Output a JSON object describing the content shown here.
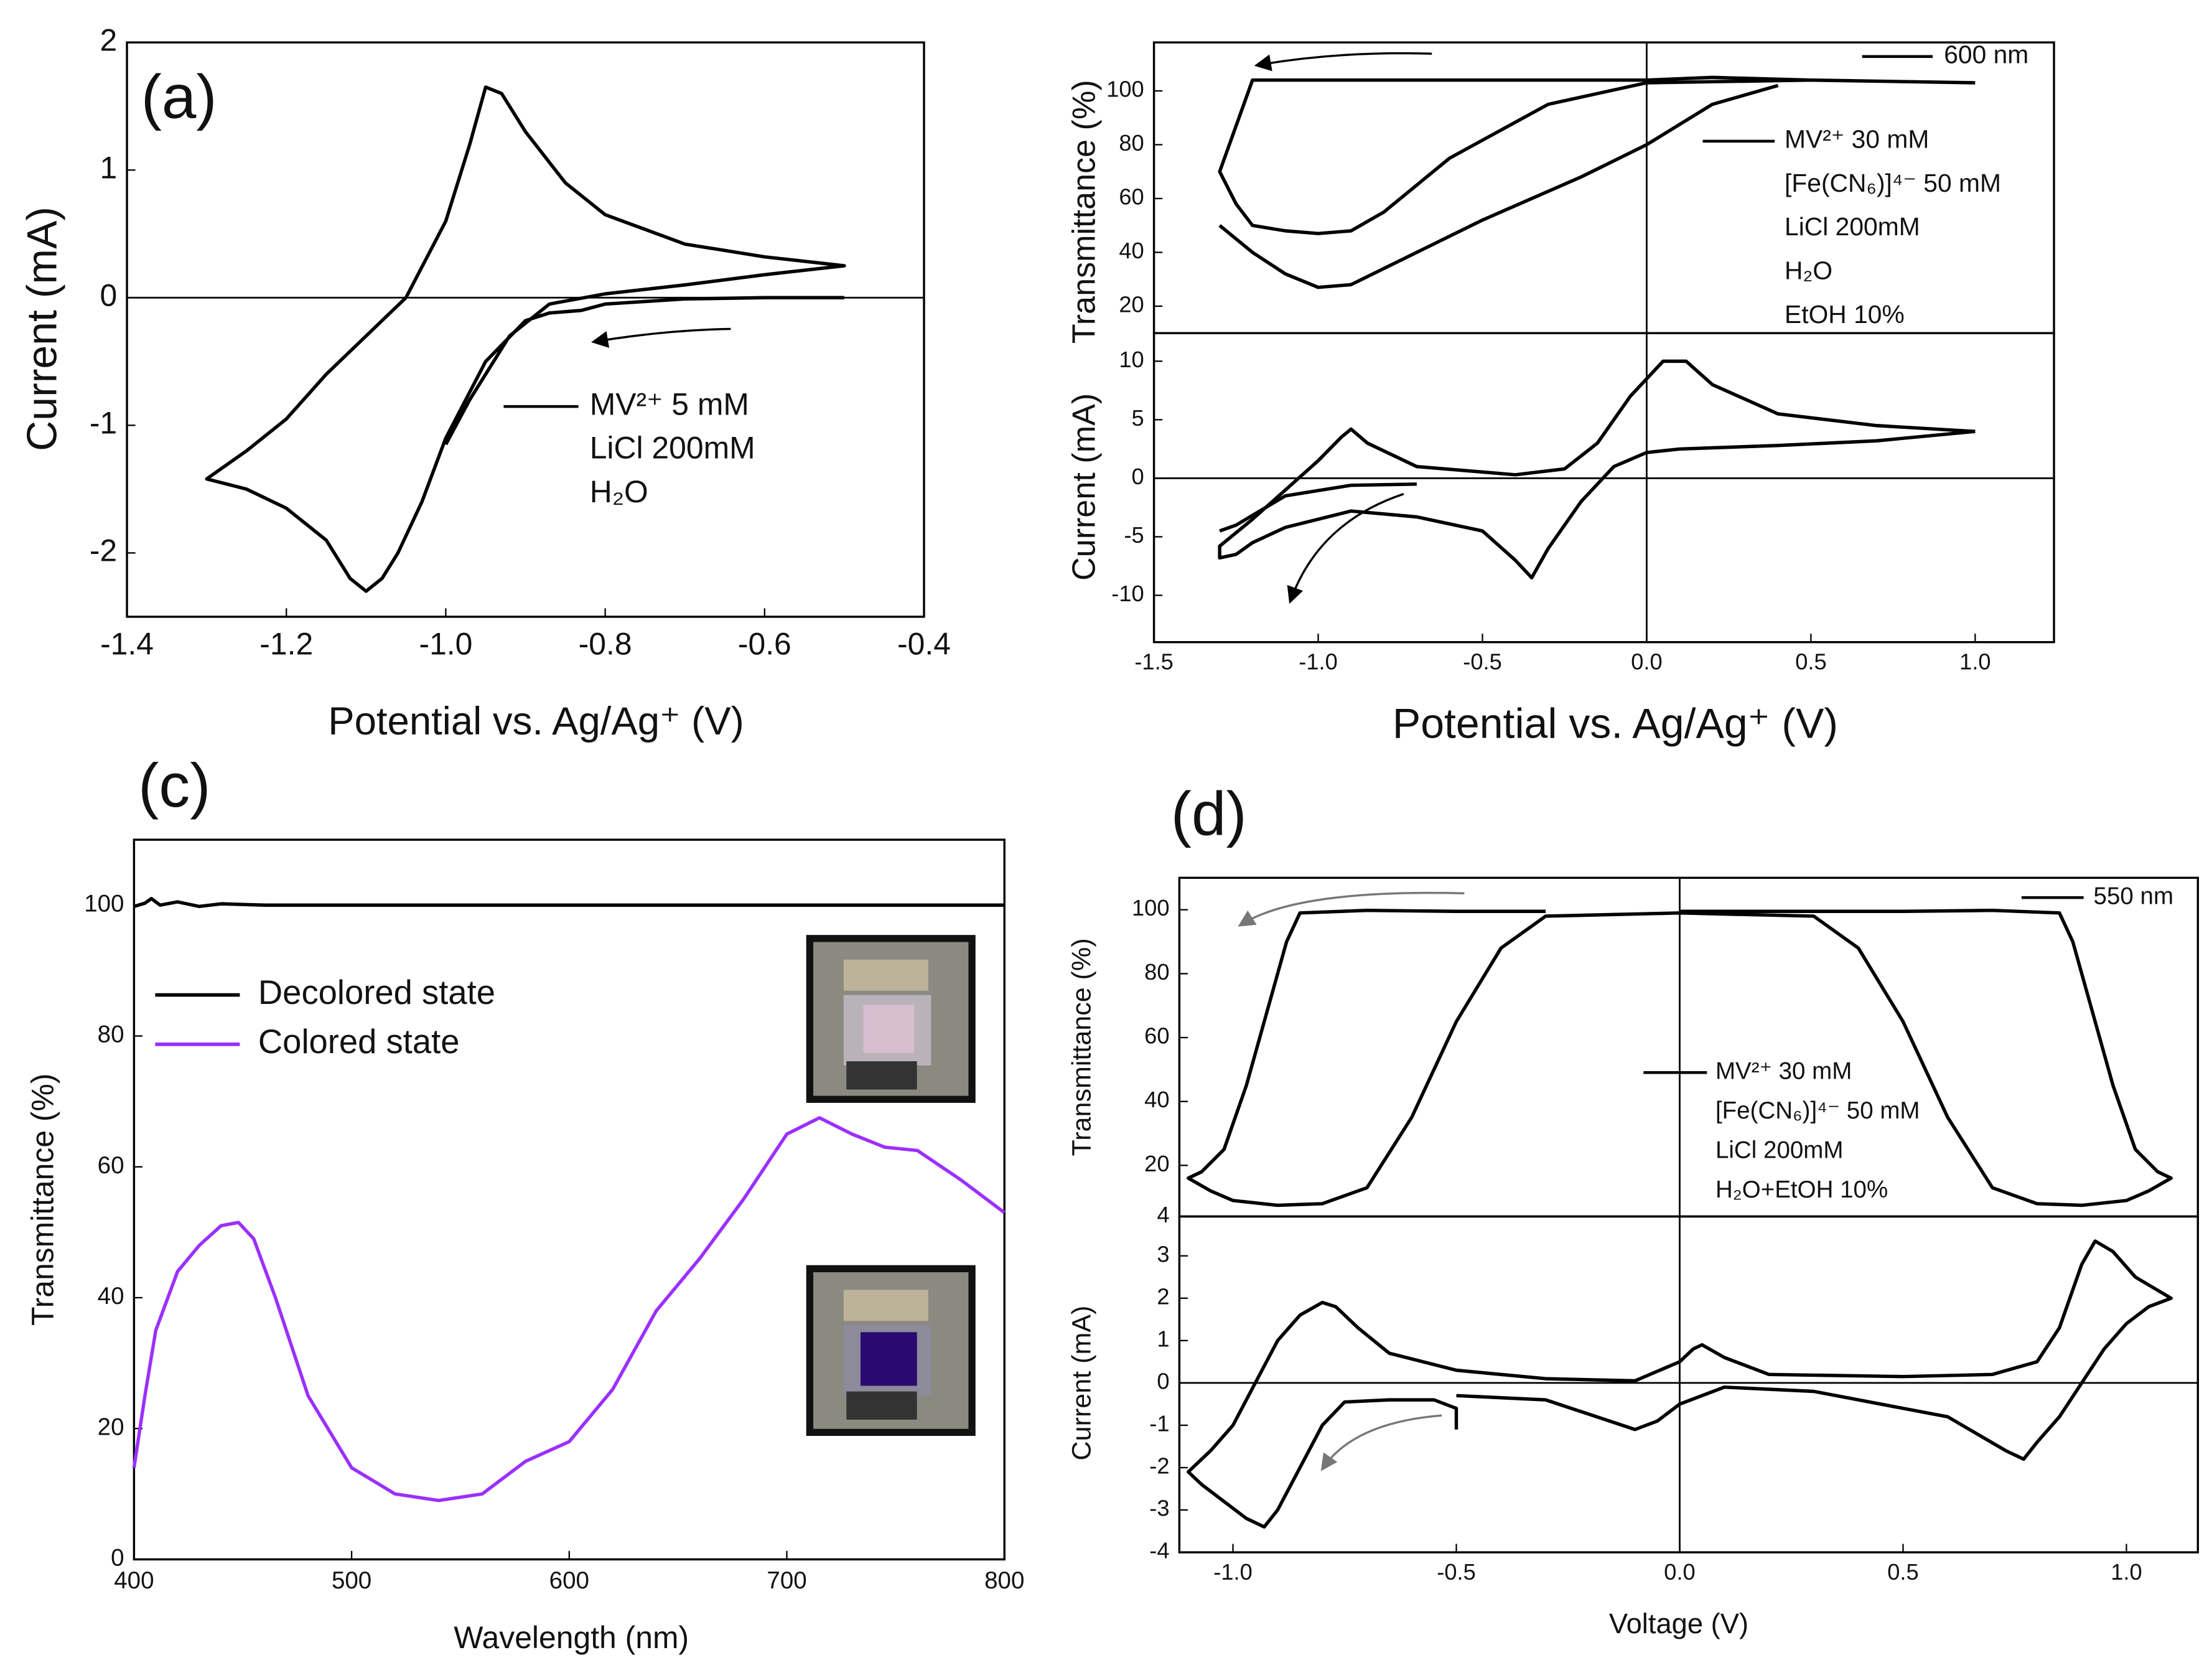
{
  "chart_data": [
    {
      "type": "line",
      "panel_label": "(a)",
      "xlabel": "Potential vs. Ag/Ag⁺ (V)",
      "ylabel": "Current (mA)",
      "xlim": [
        -1.4,
        -0.4
      ],
      "ylim": [
        -2.5,
        2
      ],
      "xticks": [
        -1.4,
        -1.2,
        {
          "value": -1,
          "label": "-1.0"
        },
        -0.8,
        -0.6,
        -0.4
      ],
      "yticks": [
        -2,
        -1,
        0,
        1,
        2
      ],
      "zero_lines": [
        "y"
      ],
      "annotations": [
        [
          "MV²⁺ 5 mM",
          "LiCl 200mM",
          "H₂O"
        ]
      ],
      "series": [
        {
          "color": "#000000",
          "x": [
            -0.5,
            -0.6,
            -0.7,
            -0.8,
            -0.83,
            -0.87,
            -0.9,
            -0.95,
            -1.0,
            -1.03,
            -1.06,
            -1.08,
            -1.1,
            -1.12,
            -1.15,
            -1.2,
            -1.25,
            -1.3,
            -1.25,
            -1.2,
            -1.15,
            -1.1,
            -1.05,
            -1.0,
            -0.97,
            -0.95,
            -0.93,
            -0.9,
            -0.85,
            -0.8,
            -0.7,
            -0.6,
            -0.5,
            -0.6,
            -0.7,
            -0.8,
            -0.87,
            -0.92,
            -0.97,
            -1.0
          ],
          "values": [
            0,
            0,
            -0.01,
            -0.05,
            -0.1,
            -0.12,
            -0.18,
            -0.5,
            -1.1,
            -1.6,
            -2.0,
            -2.2,
            -2.3,
            -2.2,
            -1.9,
            -1.65,
            -1.5,
            -1.42,
            -1.2,
            -0.95,
            -0.6,
            -0.3,
            0,
            0.6,
            1.2,
            1.65,
            1.6,
            1.3,
            0.9,
            0.65,
            0.42,
            0.32,
            0.25,
            0.18,
            0.1,
            0.03,
            -0.05,
            -0.3,
            -0.8,
            -1.15
          ]
        }
      ]
    },
    {
      "type": "line",
      "ylabel": "Transmittance (%)",
      "xlim": [
        -1.5,
        1.24
      ],
      "ylim": [
        10,
        118
      ],
      "yticks": [
        20,
        40,
        60,
        80,
        100
      ],
      "zero_lines": [
        "x"
      ],
      "annotations": [
        [
          "600 nm"
        ],
        [
          "MV²⁺ 30 mM",
          "[Fe(CN₆)]⁴⁻ 50 mM",
          "LiCl 200mM",
          "H₂O",
          "EtOH 10%"
        ]
      ],
      "series": [
        {
          "color": "#000000",
          "x": [
            1.0,
            0.5,
            0.2,
            0,
            -0.2,
            -0.5,
            -0.8,
            -0.95,
            -1.1,
            -1.2,
            -1.3,
            -1.25,
            -1.2,
            -1.1,
            -1.0,
            -0.9,
            -0.8,
            -0.6,
            -0.3,
            0,
            0.5,
            1.0
          ],
          "values": [
            103,
            104,
            105,
            104,
            104,
            104,
            104,
            104,
            104,
            104,
            70,
            58,
            50,
            48,
            47,
            48,
            55,
            75,
            95,
            103,
            104,
            103
          ]
        },
        {
          "color": "#000000",
          "x": [
            -1.3,
            -1.2,
            -1.1,
            -1.0,
            -0.9,
            -0.7,
            -0.5,
            -0.2,
            0,
            0.2,
            0.4
          ],
          "values": [
            50,
            40,
            32,
            27,
            28,
            40,
            52,
            68,
            80,
            95,
            102
          ]
        }
      ]
    },
    {
      "type": "line",
      "xlabel": "Potential vs. Ag/Ag⁺ (V)",
      "ylabel": "Current (mA)",
      "xlim": [
        -1.5,
        1.24
      ],
      "ylim": [
        -14,
        12.4
      ],
      "xticks": [
        -1.5,
        {
          "value": -1,
          "label": "-1.0"
        },
        -0.5,
        {
          "value": 0,
          "label": "0.0"
        },
        0.5,
        {
          "value": 1,
          "label": "1.0"
        }
      ],
      "yticks": [
        -10,
        -5,
        0,
        5,
        10
      ],
      "zero_lines": [
        "x",
        "y"
      ],
      "series": [
        {
          "color": "#000000",
          "x": [
            1.0,
            0.7,
            0.4,
            0.2,
            0.1,
            0,
            -0.1,
            -0.2,
            -0.3,
            -0.35,
            -0.4,
            -0.5,
            -0.7,
            -0.9,
            -1.1,
            -1.2,
            -1.25,
            -1.3,
            -1.3,
            -1.2,
            -1.1,
            -1.0,
            -0.93,
            -0.9,
            -0.85,
            -0.7,
            -0.4,
            -0.25,
            -0.15,
            -0.05,
            0.05,
            0.12,
            0.2,
            0.4,
            0.7,
            1.0
          ],
          "values": [
            4,
            3.2,
            2.8,
            2.6,
            2.5,
            2.2,
            1.0,
            -2,
            -6,
            -8.5,
            -7,
            -4.5,
            -3.3,
            -2.8,
            -4.2,
            -5.5,
            -6.5,
            -6.8,
            -5.8,
            -3.5,
            -1,
            1.5,
            3.5,
            4.2,
            3,
            1,
            0.3,
            0.8,
            3,
            7,
            10,
            10,
            8,
            5.5,
            4.5,
            4
          ]
        },
        {
          "color": "#000000",
          "x": [
            -0.7,
            -0.9,
            -1.1,
            -1.25,
            -1.3
          ],
          "values": [
            -0.5,
            -0.6,
            -1.5,
            -4,
            -4.5
          ]
        }
      ]
    },
    {
      "type": "line",
      "panel_label": "(c)",
      "xlabel": "Wavelength (nm)",
      "ylabel": "Transmittance (%)",
      "xlim": [
        400,
        800
      ],
      "ylim": [
        0,
        110
      ],
      "xticks": [
        400,
        500,
        600,
        700,
        800
      ],
      "yticks": [
        0,
        20,
        40,
        60,
        80,
        100
      ],
      "legend": "upper left",
      "series": [
        {
          "name": "Decolored state",
          "color": "#000000",
          "x": [
            400,
            405,
            408,
            412,
            420,
            430,
            440,
            460,
            500,
            600,
            700,
            800
          ],
          "values": [
            99.8,
            100.3,
            101,
            100,
            100.5,
            99.8,
            100.2,
            100,
            100,
            100,
            100,
            100
          ]
        },
        {
          "name": "Colored state",
          "color": "#9b30ff",
          "x": [
            400,
            405,
            410,
            420,
            430,
            440,
            448,
            455,
            465,
            480,
            500,
            520,
            540,
            560,
            580,
            600,
            620,
            640,
            660,
            680,
            700,
            715,
            730,
            745,
            760,
            780,
            800
          ],
          "values": [
            14,
            25,
            35,
            44,
            48,
            51,
            51.5,
            49,
            40,
            25,
            14,
            10,
            9,
            10,
            15,
            18,
            26,
            38,
            46,
            55,
            65,
            67.5,
            65,
            63,
            62.5,
            58,
            53
          ]
        }
      ]
    },
    {
      "type": "line",
      "panel_label": "(d)",
      "ylabel": "Transmittance (%)",
      "xlim": [
        -1.12,
        1.16
      ],
      "ylim": [
        4,
        110
      ],
      "yticks": [
        4,
        20,
        40,
        60,
        80,
        100
      ],
      "zero_lines": [
        "x"
      ],
      "annotations": [
        [
          "550 nm"
        ],
        [
          "MV²⁺ 30 mM",
          "[Fe(CN₆)]⁴⁻ 50 mM",
          "LiCl 200mM",
          "H₂O+EtOH 10%"
        ]
      ],
      "series": [
        {
          "color": "#000000",
          "x": [
            -0.3,
            -0.5,
            -0.7,
            -0.85,
            -0.88,
            -0.92,
            -0.97,
            -1.02,
            -1.07,
            -1.1,
            -1.05,
            -1.0,
            -0.9,
            -0.8,
            -0.7,
            -0.6,
            -0.5,
            -0.4,
            -0.3,
            0,
            0.3,
            0.4,
            0.5,
            0.6,
            0.7,
            0.8,
            0.9,
            1.0,
            1.05,
            1.1,
            1.07,
            1.02,
            0.97,
            0.92,
            0.88,
            0.85,
            0.7,
            0.5,
            0.3,
            0
          ],
          "values": [
            99.5,
            99.5,
            99.8,
            99,
            90,
            70,
            45,
            25,
            18,
            16,
            12,
            9,
            7.5,
            8,
            13,
            35,
            65,
            88,
            98,
            99,
            98,
            88,
            65,
            35,
            13,
            8,
            7.5,
            9,
            12,
            16,
            18,
            25,
            45,
            70,
            90,
            99,
            99.8,
            99.5,
            99.5,
            99.5
          ]
        }
      ]
    },
    {
      "type": "line",
      "xlabel": "Voltage (V)",
      "ylabel": "Current (mA)",
      "xlim": [
        -1.12,
        1.16
      ],
      "ylim": [
        -4,
        3.93
      ],
      "xticks": [
        {
          "value": -1,
          "label": "-1.0"
        },
        -0.5,
        {
          "value": 0,
          "label": "0.0"
        },
        0.5,
        {
          "value": 1,
          "label": "1.0"
        }
      ],
      "yticks": [
        -4,
        -3,
        -2,
        -1,
        0,
        1,
        2,
        3
      ],
      "zero_lines": [
        "x",
        "y"
      ],
      "series": [
        {
          "color": "#000000",
          "x": [
            -0.5,
            -0.5,
            -0.55,
            -0.65,
            -0.75,
            -0.8,
            -0.85,
            -0.9,
            -0.93,
            -0.97,
            -1.02,
            -1.07,
            -1.1,
            -1.05,
            -1.0,
            -0.95,
            -0.9,
            -0.85,
            -0.8,
            -0.77,
            -0.72,
            -0.65,
            -0.5,
            -0.3,
            -0.1,
            0,
            0.03,
            0.05,
            0.1,
            0.2,
            0.5,
            0.7,
            0.8,
            0.85,
            0.9,
            0.93,
            0.97,
            1.02,
            1.1,
            1.05,
            1.0,
            0.95,
            0.9,
            0.85,
            0.8,
            0.77,
            0.73,
            0.6,
            0.3,
            0.1,
            0,
            -0.05,
            -0.1,
            -0.3,
            -0.5
          ],
          "values": [
            -1.1,
            -0.6,
            -0.4,
            -0.4,
            -0.45,
            -1.0,
            -2.0,
            -3.0,
            -3.4,
            -3.2,
            -2.8,
            -2.4,
            -2.1,
            -1.6,
            -1.0,
            0,
            1.0,
            1.6,
            1.9,
            1.8,
            1.3,
            0.7,
            0.3,
            0.1,
            0.05,
            0.5,
            0.8,
            0.9,
            0.6,
            0.2,
            0.15,
            0.2,
            0.5,
            1.3,
            2.8,
            3.35,
            3.1,
            2.5,
            2.0,
            1.8,
            1.4,
            0.8,
            0,
            -0.8,
            -1.4,
            -1.8,
            -1.6,
            -0.8,
            -0.2,
            -0.1,
            -0.5,
            -0.9,
            -1.1,
            -0.4,
            -0.3
          ]
        }
      ]
    }
  ]
}
